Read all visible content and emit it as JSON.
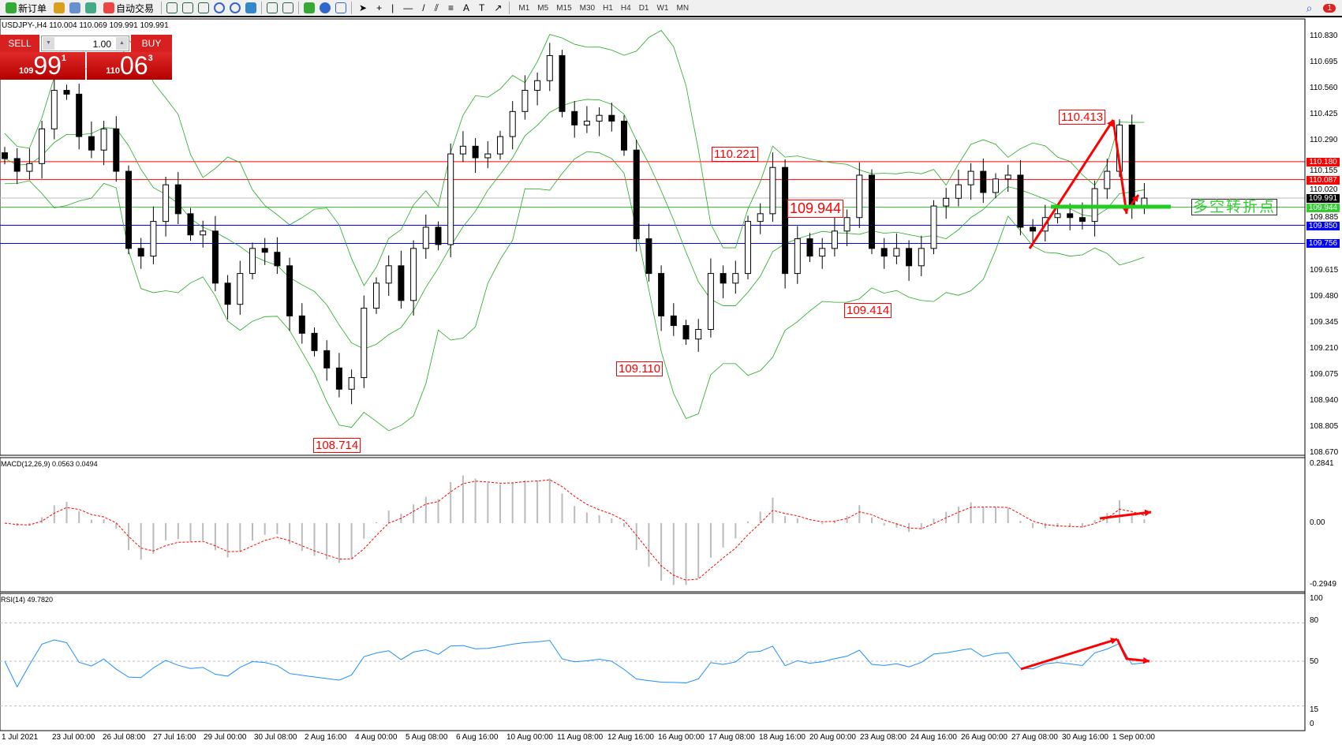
{
  "toolbar": {
    "new_order": "新订单",
    "auto_trading": "自动交易",
    "timeframes": [
      "M1",
      "M5",
      "M15",
      "M30",
      "H1",
      "H4",
      "D1",
      "W1",
      "MN"
    ],
    "notifications": "1"
  },
  "chart": {
    "symbol_line": "USDJPY-,H4  110.004 110.069 109.991 109.991"
  },
  "trade_panel": {
    "sell_label": "SELL",
    "buy_label": "BUY",
    "lot": "1.00",
    "sell_prefix": "109",
    "sell_big": "99",
    "sell_pip": "1",
    "buy_prefix": "110",
    "buy_big": "06",
    "buy_pip": "3"
  },
  "price_axis": [
    "110.830",
    "110.695",
    "110.560",
    "110.425",
    "110.290",
    "110.155",
    "110.020",
    "109.885",
    "109.615",
    "109.480",
    "109.345",
    "109.210",
    "109.075",
    "108.940",
    "108.805",
    "108.670"
  ],
  "levels": [
    {
      "price": "110.180",
      "color": "#ff0000"
    },
    {
      "price": "110.087",
      "color": "#ff0000"
    },
    {
      "price": "109.991",
      "color": "#000000"
    },
    {
      "price": "109.944",
      "color": "#33cc33"
    },
    {
      "price": "109.850",
      "color": "#0000ff"
    },
    {
      "price": "109.756",
      "color": "#0000ff"
    }
  ],
  "annotations": {
    "a1": "110.413",
    "a2": "110.221",
    "a3": "109.944",
    "a4": "109.414",
    "a5": "109.110",
    "a6": "108.714",
    "pivot_text": "多空转折点"
  },
  "macd": {
    "label": "MACD(12,26,9) 0.0563 0.0494",
    "axis": [
      "0.2841",
      "0.00",
      "-0.2949"
    ]
  },
  "rsi": {
    "label": "RSI(14) 49.7820",
    "axis": [
      "100",
      "80",
      "50",
      "15",
      "0"
    ]
  },
  "time_axis": [
    "1 Jul 2021",
    "23 Jul 00:00",
    "26 Jul 08:00",
    "27 Jul 16:00",
    "29 Jul 00:00",
    "30 Jul 08:00",
    "2 Aug 16:00",
    "4 Aug 00:00",
    "5 Aug 08:00",
    "6 Aug 16:00",
    "10 Aug 00:00",
    "11 Aug 08:00",
    "12 Aug 16:00",
    "16 Aug 00:00",
    "17 Aug 08:00",
    "18 Aug 16:00",
    "20 Aug 00:00",
    "23 Aug 08:00",
    "24 Aug 16:00",
    "26 Aug 00:00",
    "27 Aug 08:00",
    "30 Aug 16:00",
    "1 Sep 00:00"
  ],
  "chart_data": {
    "type": "candlestick",
    "symbol": "USDJPY",
    "timeframe": "H4",
    "ylim": [
      108.67,
      110.83
    ],
    "closes": [
      110.196,
      110.13,
      110.17,
      110.35,
      110.55,
      110.53,
      110.31,
      110.24,
      110.35,
      110.13,
      109.73,
      109.69,
      109.87,
      110.06,
      109.91,
      109.8,
      109.82,
      109.55,
      109.44,
      109.6,
      109.73,
      109.71,
      109.64,
      109.38,
      109.29,
      109.2,
      109.11,
      109.0,
      109.06,
      109.42,
      109.55,
      109.64,
      109.46,
      109.73,
      109.84,
      109.75,
      110.22,
      110.26,
      110.2,
      110.22,
      110.31,
      110.44,
      110.55,
      110.6,
      110.73,
      110.44,
      110.37,
      110.39,
      110.42,
      110.39,
      110.24,
      109.78,
      109.6,
      109.38,
      109.33,
      109.26,
      109.31,
      109.6,
      109.55,
      109.6,
      109.87,
      109.91,
      110.15,
      109.6,
      109.78,
      109.69,
      109.73,
      109.82,
      109.89,
      110.11,
      109.73,
      109.69,
      109.73,
      109.64,
      109.73,
      109.95,
      109.99,
      110.06,
      110.13,
      110.02,
      110.09,
      110.11,
      109.84,
      109.82,
      109.89,
      109.91,
      109.89,
      109.87,
      110.04,
      110.13,
      110.37,
      109.95,
      109.991
    ]
  }
}
